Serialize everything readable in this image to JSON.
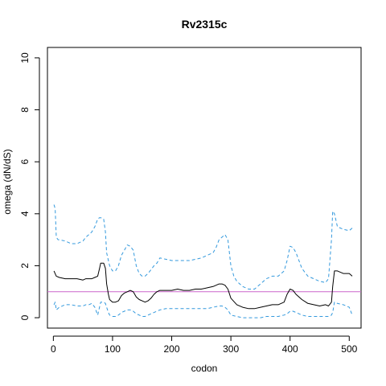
{
  "chart_data": {
    "type": "line",
    "title": "Rv2315c",
    "xlabel": "codon",
    "ylabel": "omega (dN/dS)",
    "xlim": [
      -10,
      520
    ],
    "ylim": [
      -0.4,
      10.4
    ],
    "x_ticks": [
      0,
      100,
      200,
      300,
      400,
      500
    ],
    "y_ticks": [
      0,
      2,
      4,
      6,
      8,
      10
    ],
    "grid": false,
    "legend": "none",
    "reference_line": {
      "y": 1,
      "color": "#cc66cc"
    },
    "series": [
      {
        "style": "solid",
        "color": "#000000",
        "x": [
          1,
          5,
          10,
          20,
          30,
          40,
          50,
          55,
          60,
          65,
          70,
          75,
          78,
          80,
          85,
          88,
          90,
          93,
          95,
          100,
          105,
          110,
          115,
          120,
          125,
          130,
          135,
          140,
          145,
          150,
          155,
          160,
          165,
          170,
          175,
          180,
          190,
          200,
          210,
          220,
          230,
          240,
          250,
          260,
          270,
          280,
          285,
          290,
          295,
          300,
          310,
          320,
          330,
          340,
          350,
          360,
          370,
          380,
          390,
          395,
          400,
          405,
          410,
          420,
          430,
          440,
          450,
          460,
          465,
          470,
          472,
          475,
          480,
          490,
          500,
          505
        ],
        "y": [
          1.8,
          1.6,
          1.55,
          1.5,
          1.5,
          1.5,
          1.45,
          1.5,
          1.5,
          1.5,
          1.55,
          1.6,
          1.9,
          2.1,
          2.1,
          1.9,
          1.3,
          0.9,
          0.7,
          0.6,
          0.6,
          0.65,
          0.85,
          0.95,
          1.0,
          1.05,
          1.0,
          0.8,
          0.7,
          0.65,
          0.6,
          0.65,
          0.75,
          0.9,
          1.0,
          1.05,
          1.05,
          1.05,
          1.1,
          1.05,
          1.05,
          1.1,
          1.1,
          1.15,
          1.2,
          1.3,
          1.3,
          1.25,
          1.1,
          0.75,
          0.5,
          0.4,
          0.35,
          0.35,
          0.4,
          0.45,
          0.5,
          0.5,
          0.6,
          0.9,
          1.1,
          1.05,
          0.9,
          0.7,
          0.55,
          0.5,
          0.45,
          0.5,
          0.45,
          0.6,
          1.2,
          1.8,
          1.8,
          1.7,
          1.7,
          1.6
        ]
      },
      {
        "style": "dashed",
        "color": "#3399dd",
        "x": [
          1,
          3,
          5,
          8,
          10,
          20,
          30,
          35,
          40,
          50,
          55,
          60,
          65,
          70,
          75,
          78,
          80,
          85,
          88,
          90,
          93,
          95,
          100,
          105,
          110,
          115,
          120,
          125,
          130,
          135,
          140,
          145,
          150,
          155,
          160,
          165,
          170,
          175,
          180,
          190,
          200,
          210,
          220,
          230,
          240,
          250,
          260,
          270,
          275,
          280,
          285,
          290,
          295,
          300,
          305,
          310,
          320,
          330,
          340,
          350,
          360,
          370,
          380,
          390,
          395,
          400,
          405,
          410,
          420,
          430,
          440,
          450,
          460,
          465,
          470,
          472,
          475,
          480,
          490,
          500,
          505
        ],
        "y": [
          4.35,
          4.2,
          3.1,
          3.0,
          3.0,
          2.95,
          2.85,
          2.85,
          2.85,
          2.95,
          3.1,
          3.2,
          3.3,
          3.5,
          3.8,
          3.85,
          3.85,
          3.8,
          3.3,
          2.5,
          2.2,
          2.0,
          1.8,
          1.8,
          2.0,
          2.4,
          2.6,
          2.8,
          2.75,
          2.6,
          2.0,
          1.7,
          1.6,
          1.6,
          1.7,
          1.85,
          2.0,
          2.1,
          2.3,
          2.25,
          2.2,
          2.2,
          2.2,
          2.2,
          2.25,
          2.3,
          2.4,
          2.5,
          2.7,
          3.0,
          3.1,
          3.2,
          3.0,
          2.0,
          1.6,
          1.4,
          1.2,
          1.1,
          1.1,
          1.3,
          1.5,
          1.6,
          1.6,
          1.8,
          2.2,
          2.75,
          2.7,
          2.5,
          1.9,
          1.6,
          1.5,
          1.4,
          1.35,
          1.5,
          3.0,
          4.1,
          4.0,
          3.5,
          3.4,
          3.35,
          3.45
        ]
      },
      {
        "style": "dashed",
        "color": "#3399dd",
        "x": [
          1,
          3,
          5,
          10,
          20,
          30,
          40,
          50,
          55,
          60,
          65,
          70,
          75,
          80,
          85,
          88,
          90,
          93,
          95,
          100,
          105,
          110,
          115,
          120,
          125,
          130,
          135,
          140,
          145,
          150,
          155,
          160,
          165,
          170,
          175,
          180,
          190,
          200,
          210,
          220,
          230,
          240,
          250,
          260,
          270,
          280,
          285,
          290,
          295,
          300,
          310,
          320,
          330,
          340,
          350,
          360,
          370,
          380,
          390,
          395,
          400,
          405,
          410,
          420,
          430,
          440,
          450,
          460,
          465,
          470,
          472,
          475,
          480,
          490,
          500,
          505
        ],
        "y": [
          0.5,
          0.6,
          0.3,
          0.4,
          0.5,
          0.5,
          0.45,
          0.45,
          0.5,
          0.5,
          0.55,
          0.4,
          0.1,
          0.6,
          0.6,
          0.55,
          0.4,
          0.2,
          0.1,
          0.05,
          0.05,
          0.1,
          0.2,
          0.25,
          0.3,
          0.3,
          0.25,
          0.15,
          0.1,
          0.05,
          0.05,
          0.1,
          0.15,
          0.2,
          0.25,
          0.3,
          0.35,
          0.35,
          0.35,
          0.35,
          0.35,
          0.35,
          0.35,
          0.35,
          0.4,
          0.45,
          0.45,
          0.4,
          0.3,
          0.1,
          0.05,
          0.0,
          0.0,
          0.0,
          0.0,
          0.05,
          0.05,
          0.05,
          0.1,
          0.15,
          0.25,
          0.25,
          0.2,
          0.1,
          0.05,
          0.05,
          0.05,
          0.05,
          0.05,
          0.1,
          0.2,
          0.6,
          0.55,
          0.5,
          0.4,
          0.1
        ]
      }
    ]
  }
}
